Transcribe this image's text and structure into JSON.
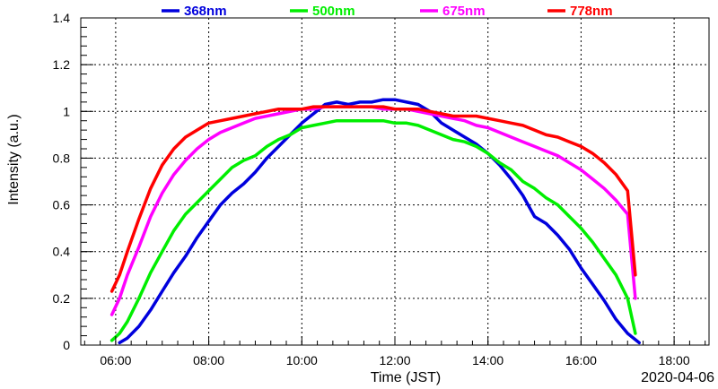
{
  "chart_data": {
    "type": "line",
    "xlabel": "Time (JST)",
    "ylabel": "Intensity (a.u.)",
    "date": "2020-04-06",
    "xlim": [
      "05:15",
      "18:45"
    ],
    "ylim": [
      0,
      1.4
    ],
    "x_ticks": [
      "06:00",
      "08:00",
      "10:00",
      "12:00",
      "14:00",
      "16:00",
      "18:00"
    ],
    "y_ticks": [
      "0",
      "0.2",
      "0.4",
      "0.6",
      "0.8",
      "1",
      "1.2",
      "1.4"
    ],
    "grid": true,
    "legend_position": "top",
    "series": [
      {
        "name": "368nm",
        "color": "#0000dd",
        "x": [
          "06:05",
          "06:15",
          "06:30",
          "06:45",
          "07:00",
          "07:15",
          "07:30",
          "07:45",
          "08:00",
          "08:15",
          "08:30",
          "08:45",
          "09:00",
          "09:15",
          "09:30",
          "09:45",
          "10:00",
          "10:15",
          "10:30",
          "10:45",
          "11:00",
          "11:15",
          "11:30",
          "11:45",
          "12:00",
          "12:15",
          "12:30",
          "12:45",
          "13:00",
          "13:15",
          "13:30",
          "13:45",
          "14:00",
          "14:15",
          "14:30",
          "14:45",
          "15:00",
          "15:15",
          "15:30",
          "15:45",
          "16:00",
          "16:15",
          "16:30",
          "16:45",
          "17:00",
          "17:15"
        ],
        "y": [
          0.01,
          0.03,
          0.08,
          0.15,
          0.23,
          0.31,
          0.38,
          0.46,
          0.53,
          0.6,
          0.65,
          0.69,
          0.74,
          0.8,
          0.85,
          0.9,
          0.95,
          0.99,
          1.03,
          1.04,
          1.03,
          1.04,
          1.04,
          1.05,
          1.05,
          1.04,
          1.03,
          1.0,
          0.95,
          0.92,
          0.89,
          0.86,
          0.82,
          0.77,
          0.71,
          0.64,
          0.55,
          0.52,
          0.47,
          0.41,
          0.33,
          0.26,
          0.19,
          0.11,
          0.05,
          0.01
        ]
      },
      {
        "name": "500nm",
        "color": "#00ee00",
        "x": [
          "05:55",
          "06:05",
          "06:15",
          "06:30",
          "06:45",
          "07:00",
          "07:15",
          "07:30",
          "07:45",
          "08:00",
          "08:15",
          "08:30",
          "08:45",
          "09:00",
          "09:15",
          "09:30",
          "09:45",
          "10:00",
          "10:15",
          "10:30",
          "10:45",
          "11:00",
          "11:15",
          "11:30",
          "11:45",
          "12:00",
          "12:15",
          "12:30",
          "12:45",
          "13:00",
          "13:15",
          "13:30",
          "13:45",
          "14:00",
          "14:15",
          "14:30",
          "14:45",
          "15:00",
          "15:15",
          "15:30",
          "15:45",
          "16:00",
          "16:15",
          "16:30",
          "16:45",
          "17:00",
          "17:10"
        ],
        "y": [
          0.02,
          0.05,
          0.1,
          0.2,
          0.31,
          0.4,
          0.49,
          0.56,
          0.61,
          0.66,
          0.71,
          0.76,
          0.79,
          0.81,
          0.85,
          0.88,
          0.9,
          0.93,
          0.94,
          0.95,
          0.96,
          0.96,
          0.96,
          0.96,
          0.96,
          0.95,
          0.95,
          0.94,
          0.92,
          0.9,
          0.88,
          0.87,
          0.85,
          0.82,
          0.78,
          0.75,
          0.7,
          0.67,
          0.63,
          0.6,
          0.55,
          0.5,
          0.44,
          0.37,
          0.3,
          0.2,
          0.05
        ]
      },
      {
        "name": "675nm",
        "color": "#ff00ff",
        "x": [
          "05:55",
          "06:05",
          "06:15",
          "06:30",
          "06:45",
          "07:00",
          "07:15",
          "07:30",
          "07:45",
          "08:00",
          "08:15",
          "08:30",
          "08:45",
          "09:00",
          "09:15",
          "09:30",
          "09:45",
          "10:00",
          "10:15",
          "10:30",
          "10:45",
          "11:00",
          "11:15",
          "11:30",
          "11:45",
          "12:00",
          "12:15",
          "12:30",
          "12:45",
          "13:00",
          "13:15",
          "13:30",
          "13:45",
          "14:00",
          "14:15",
          "14:30",
          "14:45",
          "15:00",
          "15:15",
          "15:30",
          "15:45",
          "16:00",
          "16:15",
          "16:30",
          "16:45",
          "17:00",
          "17:10"
        ],
        "y": [
          0.13,
          0.2,
          0.3,
          0.42,
          0.55,
          0.65,
          0.73,
          0.79,
          0.84,
          0.88,
          0.91,
          0.93,
          0.95,
          0.97,
          0.98,
          0.99,
          1.0,
          1.01,
          1.01,
          1.02,
          1.02,
          1.02,
          1.02,
          1.02,
          1.01,
          1.01,
          1.01,
          1.0,
          0.99,
          0.98,
          0.97,
          0.96,
          0.94,
          0.93,
          0.91,
          0.89,
          0.87,
          0.85,
          0.83,
          0.81,
          0.78,
          0.75,
          0.71,
          0.67,
          0.62,
          0.56,
          0.2
        ]
      },
      {
        "name": "778nm",
        "color": "#ff0000",
        "x": [
          "05:55",
          "06:05",
          "06:15",
          "06:30",
          "06:45",
          "07:00",
          "07:15",
          "07:30",
          "07:45",
          "08:00",
          "08:15",
          "08:30",
          "08:45",
          "09:00",
          "09:15",
          "09:30",
          "09:45",
          "10:00",
          "10:15",
          "10:30",
          "10:45",
          "11:00",
          "11:15",
          "11:30",
          "11:45",
          "12:00",
          "12:15",
          "12:30",
          "12:45",
          "13:00",
          "13:15",
          "13:30",
          "13:45",
          "14:00",
          "14:15",
          "14:30",
          "14:45",
          "15:00",
          "15:15",
          "15:30",
          "15:45",
          "16:00",
          "16:15",
          "16:30",
          "16:45",
          "17:00",
          "17:10"
        ],
        "y": [
          0.23,
          0.3,
          0.4,
          0.54,
          0.67,
          0.77,
          0.84,
          0.89,
          0.92,
          0.95,
          0.96,
          0.97,
          0.98,
          0.99,
          1.0,
          1.01,
          1.01,
          1.01,
          1.02,
          1.02,
          1.02,
          1.02,
          1.02,
          1.02,
          1.02,
          1.01,
          1.01,
          1.01,
          1.0,
          0.99,
          0.98,
          0.98,
          0.98,
          0.97,
          0.96,
          0.95,
          0.94,
          0.92,
          0.9,
          0.89,
          0.87,
          0.85,
          0.82,
          0.78,
          0.73,
          0.66,
          0.3
        ]
      }
    ]
  }
}
